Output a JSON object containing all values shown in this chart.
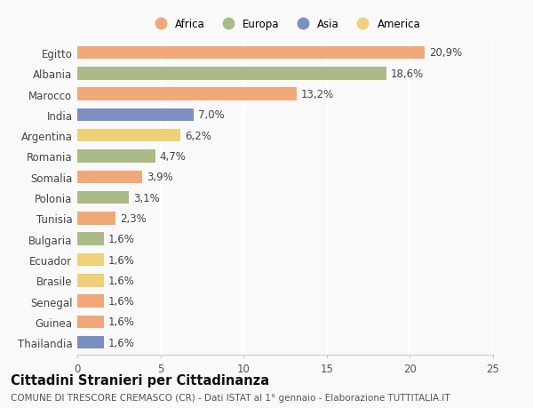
{
  "countries": [
    "Egitto",
    "Albania",
    "Marocco",
    "India",
    "Argentina",
    "Romania",
    "Somalia",
    "Polonia",
    "Tunisia",
    "Bulgaria",
    "Ecuador",
    "Brasile",
    "Senegal",
    "Guinea",
    "Thailandia"
  ],
  "values": [
    20.9,
    18.6,
    13.2,
    7.0,
    6.2,
    4.7,
    3.9,
    3.1,
    2.3,
    1.6,
    1.6,
    1.6,
    1.6,
    1.6,
    1.6
  ],
  "labels": [
    "20,9%",
    "18,6%",
    "13,2%",
    "7,0%",
    "6,2%",
    "4,7%",
    "3,9%",
    "3,1%",
    "2,3%",
    "1,6%",
    "1,6%",
    "1,6%",
    "1,6%",
    "1,6%",
    "1,6%"
  ],
  "continents": [
    "Africa",
    "Europa",
    "Africa",
    "Asia",
    "America",
    "Europa",
    "Africa",
    "Europa",
    "Africa",
    "Europa",
    "America",
    "America",
    "Africa",
    "Africa",
    "Asia"
  ],
  "continent_colors": {
    "Africa": "#F0A878",
    "Europa": "#AABB88",
    "Asia": "#7B8FC0",
    "America": "#F0D078"
  },
  "legend_order": [
    "Africa",
    "Europa",
    "Asia",
    "America"
  ],
  "xlim": [
    0,
    25
  ],
  "xticks": [
    0,
    5,
    10,
    15,
    20,
    25
  ],
  "title": "Cittadini Stranieri per Cittadinanza",
  "subtitle": "COMUNE DI TRESCORE CREMASCO (CR) - Dati ISTAT al 1° gennaio - Elaborazione TUTTITALIA.IT",
  "background_color": "#f9f9f9",
  "bar_height": 0.62,
  "label_fontsize": 8.5,
  "tick_fontsize": 8.5,
  "title_fontsize": 10.5,
  "subtitle_fontsize": 7.5
}
